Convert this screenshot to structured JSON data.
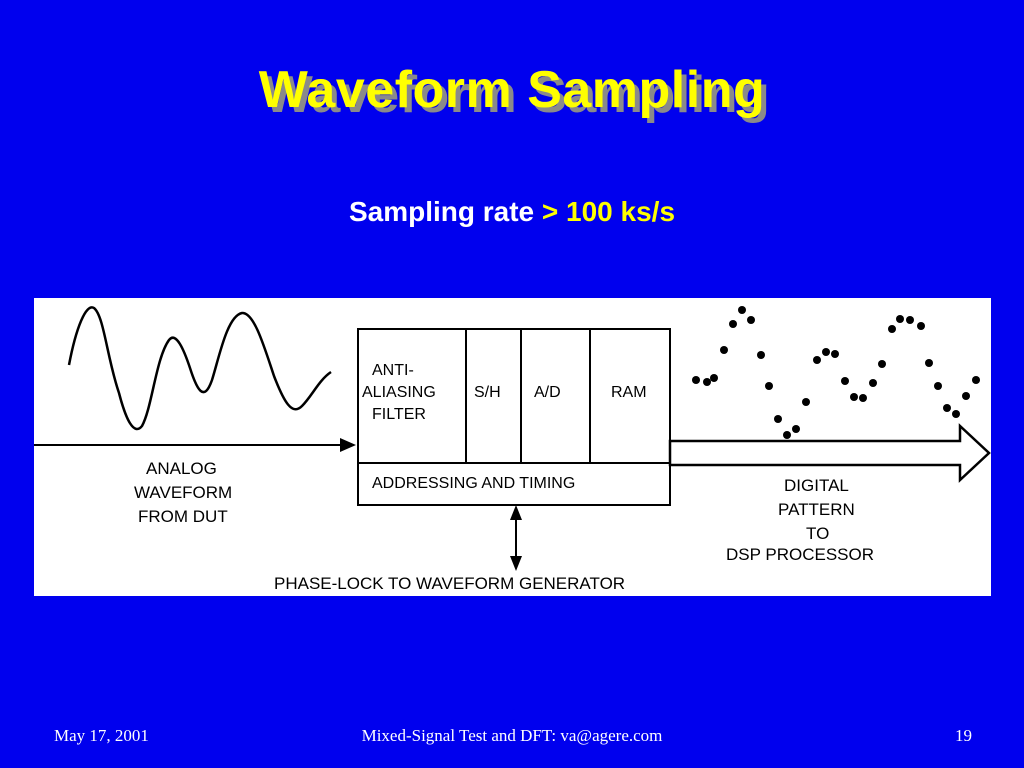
{
  "slide": {
    "title": "Waveform Sampling",
    "subtitle_part1": "Sampling rate ",
    "subtitle_part2": "> 100 ks/s"
  },
  "diagram": {
    "blocks": {
      "anti_aliasing_1": "ANTI-",
      "anti_aliasing_2": "ALIASING",
      "anti_aliasing_3": "FILTER",
      "sample_hold": "S/H",
      "ad_converter": "A/D",
      "ram": "RAM",
      "addressing": "ADDRESSING AND TIMING"
    },
    "analog_label_1": "ANALOG",
    "analog_label_2": "WAVEFORM",
    "analog_label_3": "FROM DUT",
    "digital_label_1": "DIGITAL",
    "digital_label_2": "PATTERN",
    "digital_label_3": "TO",
    "digital_label_4": "DSP PROCESSOR",
    "phase_lock_label": "PHASE-LOCK TO WAVEFORM GENERATOR",
    "colors": {
      "ink": "#000000",
      "panel": "#ffffff"
    }
  },
  "footer": {
    "date": "May 17, 2001",
    "center": "Mixed-Signal Test and DFT: va@agere.com",
    "page": "19"
  }
}
